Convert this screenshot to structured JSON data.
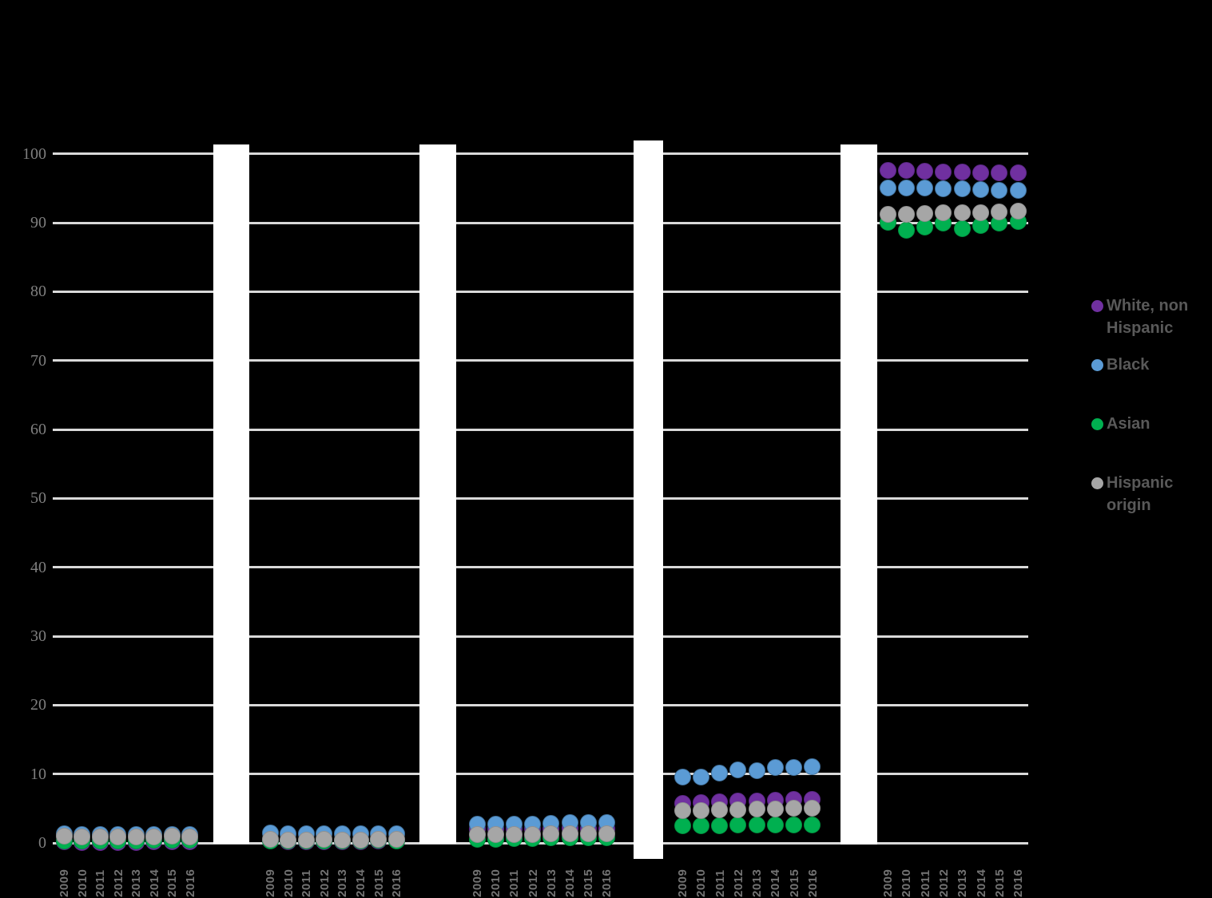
{
  "chart_data": {
    "type": "scatter",
    "title": "",
    "categories": [
      "2009",
      "2010",
      "2011",
      "2012",
      "2013",
      "2014",
      "2015",
      "2016"
    ],
    "y_axis": {
      "min": 0,
      "max": 100,
      "step": 10,
      "ticks": [
        0,
        10,
        20,
        30,
        40,
        50,
        60,
        70,
        80,
        90,
        100
      ],
      "tick_labels": [
        "0",
        "10",
        "20",
        "30",
        "40",
        "50",
        "60",
        "70",
        "80",
        "90",
        "100"
      ]
    },
    "grid": "horizontal-on",
    "legend_position": "right",
    "series_names": [
      "White, non Hispanic",
      "Black",
      "Asian",
      "Hispanic origin"
    ],
    "colors": {
      "white_non_hispanic": "#7030A0",
      "black": "#5B9BD5",
      "asian": "#00B050",
      "hispanic_origin": "#A6A6A6"
    },
    "edge_colors": {
      "white_non_hispanic": "#5B2786",
      "black": "#41719C",
      "asian": "#00913F",
      "hispanic_origin": "#8F8F8F"
    },
    "panels": [
      {
        "id": "group-1",
        "series": [
          {
            "name": "White, non Hispanic",
            "color": "#7030A0",
            "edge": "#5B2786",
            "values": [
              0.2,
              0.1,
              0.1,
              0.1,
              0.1,
              0.2,
              0.2,
              0.2
            ]
          },
          {
            "name": "Black",
            "color": "#5B9BD5",
            "edge": "#41719C",
            "values": [
              1.3,
              1.2,
              1.2,
              1.2,
              1.2,
              1.2,
              1.2,
              1.2
            ]
          },
          {
            "name": "Asian",
            "color": "#00B050",
            "edge": "#00913F",
            "values": [
              0.3,
              0.3,
              0.3,
              0.3,
              0.3,
              0.4,
              0.4,
              0.4
            ]
          },
          {
            "name": "Hispanic origin",
            "color": "#A6A6A6",
            "edge": "#8F8F8F",
            "values": [
              1.0,
              0.9,
              0.9,
              0.9,
              0.9,
              0.9,
              1.0,
              0.9
            ]
          }
        ]
      },
      {
        "id": "group-2",
        "series": [
          {
            "name": "White, non Hispanic",
            "color": "#7030A0",
            "edge": "#5B2786",
            "values": [
              0.3,
              0.2,
              0.2,
              0.2,
              0.2,
              0.2,
              0.3,
              0.3
            ]
          },
          {
            "name": "Black",
            "color": "#5B9BD5",
            "edge": "#41719C",
            "values": [
              1.4,
              1.3,
              1.3,
              1.3,
              1.3,
              1.3,
              1.3,
              1.3
            ]
          },
          {
            "name": "Asian",
            "color": "#00B050",
            "edge": "#00913F",
            "values": [
              0.3,
              0.25,
              0.25,
              0.3,
              0.3,
              0.3,
              0.35,
              0.3
            ]
          },
          {
            "name": "Hispanic origin",
            "color": "#A6A6A6",
            "edge": "#8F8F8F",
            "values": [
              0.5,
              0.45,
              0.45,
              0.5,
              0.45,
              0.45,
              0.5,
              0.5
            ]
          }
        ]
      },
      {
        "id": "group-3",
        "series": [
          {
            "name": "White, non Hispanic",
            "color": "#7030A0",
            "edge": "#5B2786",
            "values": [
              2.0,
              2.0,
              2.0,
              2.0,
              2.0,
              2.1,
              2.0,
              2.0
            ]
          },
          {
            "name": "Black",
            "color": "#5B9BD5",
            "edge": "#41719C",
            "values": [
              2.7,
              2.7,
              2.7,
              2.7,
              2.8,
              3.0,
              2.9,
              2.9
            ]
          },
          {
            "name": "Asian",
            "color": "#00B050",
            "edge": "#00913F",
            "values": [
              0.5,
              0.5,
              0.6,
              0.6,
              0.7,
              0.8,
              0.8,
              0.7
            ]
          },
          {
            "name": "Hispanic origin",
            "color": "#A6A6A6",
            "edge": "#8F8F8F",
            "values": [
              1.2,
              1.2,
              1.2,
              1.2,
              1.3,
              1.3,
              1.3,
              1.3
            ]
          }
        ]
      },
      {
        "id": "group-4",
        "series": [
          {
            "name": "White, non Hispanic",
            "color": "#7030A0",
            "edge": "#5B2786",
            "values": [
              5.7,
              5.8,
              6.0,
              6.1,
              6.1,
              6.2,
              6.3,
              6.3
            ]
          },
          {
            "name": "Black",
            "color": "#5B9BD5",
            "edge": "#41719C",
            "values": [
              9.5,
              9.6,
              10.1,
              10.6,
              10.5,
              10.9,
              11.0,
              11.1
            ]
          },
          {
            "name": "Asian",
            "color": "#00B050",
            "edge": "#00913F",
            "values": [
              2.5,
              2.5,
              2.5,
              2.6,
              2.6,
              2.6,
              2.6,
              2.6
            ]
          },
          {
            "name": "Hispanic origin",
            "color": "#A6A6A6",
            "edge": "#8F8F8F",
            "values": [
              4.7,
              4.7,
              4.8,
              4.8,
              4.9,
              4.9,
              5.0,
              5.0
            ]
          }
        ]
      },
      {
        "id": "group-5",
        "series": [
          {
            "name": "White, non Hispanic",
            "color": "#7030A0",
            "edge": "#5B2786",
            "values": [
              97.6,
              97.6,
              97.5,
              97.4,
              97.4,
              97.3,
              97.2,
              97.2
            ]
          },
          {
            "name": "Black",
            "color": "#5B9BD5",
            "edge": "#41719C",
            "values": [
              95.1,
              95.1,
              95.0,
              94.9,
              94.9,
              94.8,
              94.7,
              94.7
            ]
          },
          {
            "name": "Asian",
            "color": "#00B050",
            "edge": "#00913F",
            "values": [
              90.1,
              88.9,
              89.4,
              90.0,
              89.1,
              89.6,
              89.9,
              90.2
            ]
          },
          {
            "name": "Hispanic origin",
            "color": "#A6A6A6",
            "edge": "#8F8F8F",
            "values": [
              91.2,
              91.2,
              91.3,
              91.4,
              91.4,
              91.5,
              91.6,
              91.7
            ]
          }
        ]
      }
    ],
    "legend": {
      "items": [
        {
          "label": "White, non Hispanic",
          "color": "#7030A0"
        },
        {
          "label": "Black",
          "color": "#5B9BD5"
        },
        {
          "label": "Asian",
          "color": "#00B050"
        },
        {
          "label": "Hispanic origin",
          "color": "#A6A6A6"
        }
      ]
    }
  }
}
